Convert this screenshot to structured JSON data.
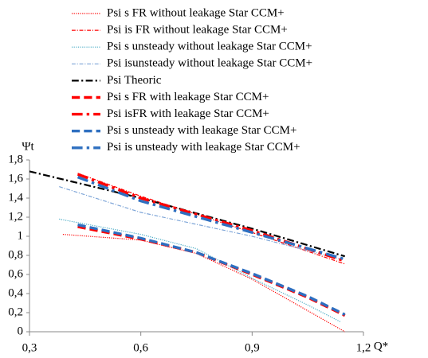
{
  "chart_data": {
    "type": "line",
    "y_label": "Ψt",
    "x_label": "Q*",
    "xlim": [
      0.3,
      1.2
    ],
    "xticks": [
      {
        "value": 0.3,
        "label": "0,3"
      },
      {
        "value": 0.6,
        "label": "0,6"
      },
      {
        "value": 0.9,
        "label": "0,9"
      },
      {
        "value": 1.2,
        "label": "1,2"
      }
    ],
    "ylim": [
      0,
      1.8
    ],
    "yticks": [
      0,
      {
        "value": 0.2,
        "label": "0,2"
      },
      {
        "value": 0.4,
        "label": "0,4"
      },
      {
        "value": 0.6,
        "label": "0,6"
      },
      {
        "value": 0.8,
        "label": "0,8"
      },
      1,
      {
        "value": 1.2,
        "label": "1,2"
      },
      {
        "value": 1.4,
        "label": "1,4"
      },
      {
        "value": 1.6,
        "label": "1,6"
      },
      {
        "value": 1.8,
        "label": "1,8"
      }
    ],
    "grid": false,
    "series": [
      {
        "name": "Psi s FR without leakage Star CCM+",
        "color": "#ff0000",
        "dash": "dotted",
        "weight": "thin",
        "x": [
          0.39,
          0.6,
          0.75,
          0.9,
          1.05,
          1.15
        ],
        "values": [
          1.02,
          0.96,
          0.82,
          0.55,
          0.22,
          0.0
        ]
      },
      {
        "name": "Psi is FR without leakage Star CCM+",
        "color": "#ff0000",
        "dash": "dash-dot",
        "weight": "thin",
        "x": [
          0.43,
          0.6,
          0.9,
          1.15
        ],
        "values": [
          1.66,
          1.42,
          1.04,
          0.71
        ]
      },
      {
        "name": "Psi s unsteady without leakage Star CCM+",
        "color": "#4bacc6",
        "dash": "dotted",
        "weight": "thin",
        "x": [
          0.38,
          0.6,
          0.75,
          0.9,
          1.05,
          1.14
        ],
        "values": [
          1.18,
          1.02,
          0.87,
          0.56,
          0.28,
          0.1
        ]
      },
      {
        "name": "Psi isunsteady without leakage Star CCM+",
        "color": "#7fa6d8",
        "dash": "dash-dot",
        "weight": "thin",
        "x": [
          0.38,
          0.6,
          0.9,
          1.14
        ],
        "values": [
          1.52,
          1.25,
          1.0,
          0.76
        ]
      },
      {
        "name": "Psi Theoric",
        "color": "#000000",
        "dash": "dash-dot",
        "weight": "medium",
        "x": [
          0.3,
          0.6,
          0.9,
          1.15
        ],
        "values": [
          1.68,
          1.4,
          1.08,
          0.79
        ]
      },
      {
        "name": "Psi s FR with leakage Star CCM+",
        "color": "#ff0000",
        "dash": "dashed",
        "weight": "bold",
        "x": [
          0.43,
          0.6,
          0.75,
          0.9,
          1.05,
          1.15
        ],
        "values": [
          1.1,
          0.97,
          0.83,
          0.6,
          0.36,
          0.17
        ]
      },
      {
        "name": "Psi isFR with leakage Star CCM+",
        "color": "#ff0000",
        "dash": "dash-dot",
        "weight": "bold",
        "x": [
          0.43,
          0.6,
          0.9,
          1.15
        ],
        "values": [
          1.65,
          1.4,
          1.06,
          0.74
        ]
      },
      {
        "name": "Psi s unsteady with leakage Star CCM+",
        "color": "#2e6fc0",
        "dash": "dashed",
        "weight": "bold",
        "x": [
          0.43,
          0.6,
          0.75,
          0.9,
          1.05,
          1.15
        ],
        "values": [
          1.12,
          0.98,
          0.83,
          0.61,
          0.37,
          0.18
        ]
      },
      {
        "name": "Psi is unsteady with leakage Star CCM+",
        "color": "#2e6fc0",
        "dash": "dash-dot",
        "weight": "bold",
        "x": [
          0.43,
          0.6,
          0.9,
          1.15
        ],
        "values": [
          1.62,
          1.37,
          1.04,
          0.76
        ]
      }
    ]
  }
}
